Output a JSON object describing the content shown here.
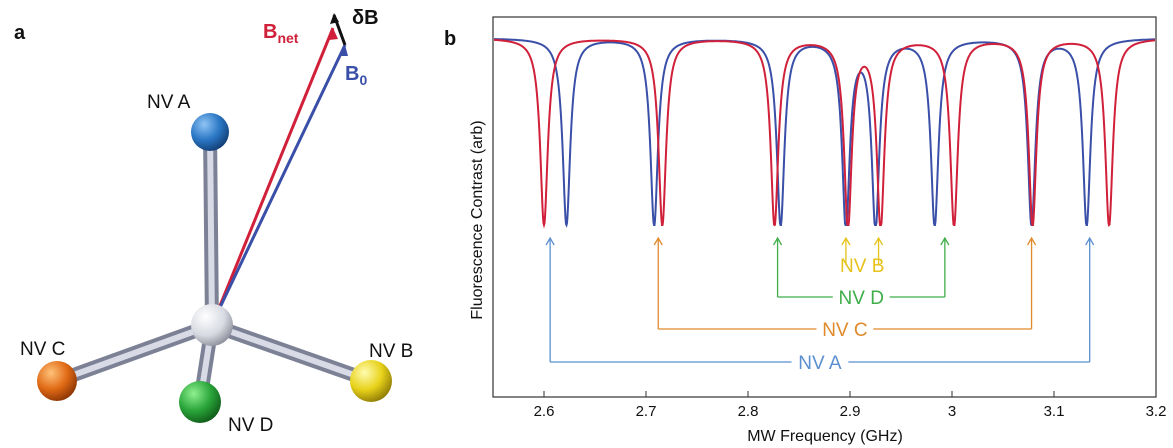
{
  "panel_a": {
    "label": "a",
    "nv_labels": {
      "a": "NV A",
      "b": "NV B",
      "c": "NV C",
      "d": "NV D"
    },
    "b_net": {
      "main": "B",
      "sub": "net",
      "color": "#d0203a"
    },
    "b_zero": {
      "main": "B",
      "sub": "0",
      "color": "#3a4fa8"
    },
    "delta_b": "δB"
  },
  "panel_b": {
    "label": "b"
  },
  "chart_data": {
    "type": "line",
    "xlabel": "MW Frequency (GHz)",
    "ylabel": "Fluorescence Contrast (arb)",
    "xlim": [
      2.55,
      3.2
    ],
    "ylim": [
      0,
      1
    ],
    "xticks": [
      "2.6",
      "2.7",
      "2.8",
      "2.9",
      "3",
      "3.1",
      "3.2"
    ],
    "series": [
      {
        "color": "#3a4fa8",
        "dips": [
          2.622,
          2.708,
          2.832,
          2.896,
          2.925,
          2.983,
          3.078,
          3.132
        ]
      },
      {
        "color": "#d0203a",
        "dips": [
          2.6,
          2.716,
          2.826,
          2.898,
          2.93,
          3.002,
          3.079,
          3.154
        ]
      }
    ],
    "annotations": [
      {
        "text": "NV A",
        "color": "#5b8fd0",
        "left": 2.606,
        "right": 3.135
      },
      {
        "text": "NV B",
        "color": "#e6c21a",
        "left": 2.896,
        "right": 2.928
      },
      {
        "text": "NV C",
        "color": "#e08a2a",
        "left": 2.712,
        "right": 3.078
      },
      {
        "text": "NV D",
        "color": "#3fae4a",
        "left": 2.829,
        "right": 2.993
      }
    ]
  }
}
